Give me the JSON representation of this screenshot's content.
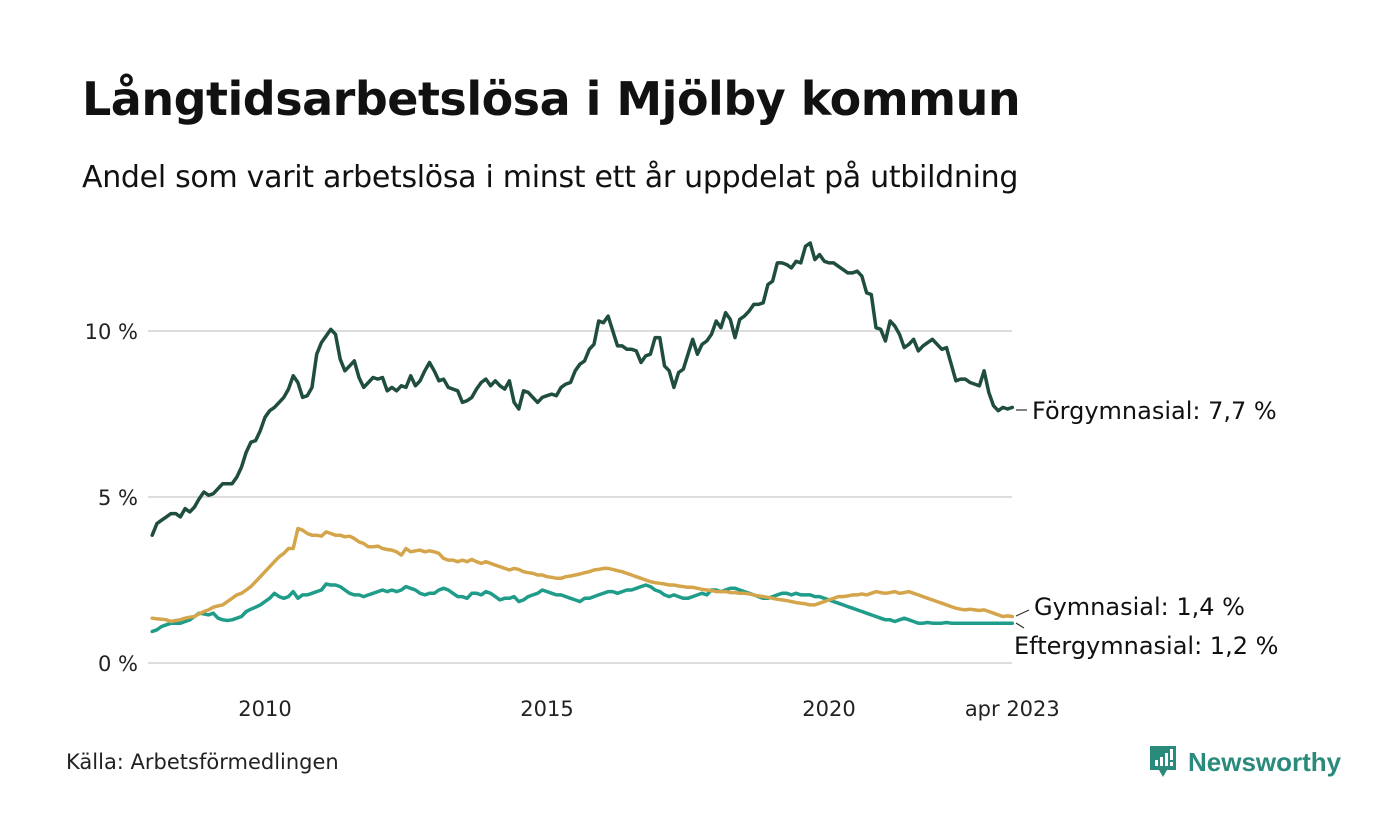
{
  "header": {
    "title": "Långtidsarbetslösa i Mjölby kommun",
    "subtitle": "Andel som varit arbetslösa i minst ett år uppdelat på utbildning"
  },
  "footer": {
    "source": "Källa: Arbetsförmedlingen",
    "brand": "Newsworthy",
    "brand_color": "#2a8a7c"
  },
  "chart_data": {
    "type": "line",
    "title": "Långtidsarbetslösa i Mjölby kommun",
    "subtitle": "Andel som varit arbetslösa i minst ett år uppdelat på utbildning",
    "xlabel": "",
    "ylabel": "",
    "x_start": "2008-01",
    "x_end": "2023-04",
    "x_frequency": "monthly",
    "xlim": [
      2008.0,
      2023.25
    ],
    "ylim": [
      0,
      13
    ],
    "grid": true,
    "y_ticks": [
      {
        "value": 0,
        "label": "0 %"
      },
      {
        "value": 5,
        "label": "5 %"
      },
      {
        "value": 10,
        "label": "10 %"
      }
    ],
    "x_ticks": [
      {
        "value": 2010.0,
        "label": "2010"
      },
      {
        "value": 2015.0,
        "label": "2015"
      },
      {
        "value": 2020.0,
        "label": "2020"
      },
      {
        "value": 2023.25,
        "label": "apr 2023"
      }
    ],
    "legend": "direct-labels-right",
    "series": [
      {
        "name": "Förgymnasial",
        "end_label": "Förgymnasial: 7,7 %",
        "color": "#1f4d3f",
        "values": [
          3.85,
          4.2,
          4.3,
          4.4,
          4.5,
          4.5,
          4.4,
          4.65,
          4.55,
          4.7,
          4.95,
          5.15,
          5.05,
          5.1,
          5.25,
          5.4,
          5.4,
          5.4,
          5.6,
          5.9,
          6.35,
          6.65,
          6.7,
          7.0,
          7.4,
          7.6,
          7.7,
          7.85,
          8.0,
          8.25,
          8.65,
          8.45,
          8.0,
          8.05,
          8.3,
          9.3,
          9.65,
          9.85,
          10.05,
          9.9,
          9.15,
          8.8,
          8.95,
          9.1,
          8.6,
          8.3,
          8.45,
          8.6,
          8.55,
          8.6,
          8.2,
          8.3,
          8.2,
          8.35,
          8.3,
          8.65,
          8.35,
          8.5,
          8.8,
          9.05,
          8.8,
          8.5,
          8.55,
          8.3,
          8.25,
          8.2,
          7.85,
          7.9,
          8.0,
          8.25,
          8.45,
          8.55,
          8.35,
          8.5,
          8.35,
          8.25,
          8.5,
          7.85,
          7.65,
          8.2,
          8.15,
          8.0,
          7.85,
          8.0,
          8.05,
          8.1,
          8.05,
          8.3,
          8.4,
          8.45,
          8.8,
          9.0,
          9.1,
          9.45,
          9.6,
          10.3,
          10.25,
          10.45,
          10.0,
          9.55,
          9.55,
          9.45,
          9.45,
          9.4,
          9.05,
          9.25,
          9.3,
          9.8,
          9.8,
          8.95,
          8.8,
          8.3,
          8.75,
          8.85,
          9.3,
          9.75,
          9.3,
          9.6,
          9.7,
          9.9,
          10.3,
          10.1,
          10.55,
          10.35,
          9.8,
          10.35,
          10.45,
          10.6,
          10.8,
          10.8,
          10.85,
          11.4,
          11.5,
          12.05,
          12.05,
          12.0,
          11.9,
          12.1,
          12.05,
          12.55,
          12.65,
          12.15,
          12.3,
          12.1,
          12.05,
          12.05,
          11.95,
          11.85,
          11.75,
          11.75,
          11.8,
          11.65,
          11.15,
          11.1,
          10.1,
          10.05,
          9.7,
          10.3,
          10.15,
          9.9,
          9.5,
          9.6,
          9.75,
          9.4,
          9.55,
          9.65,
          9.75,
          9.6,
          9.45,
          9.5,
          9.0,
          8.5,
          8.55,
          8.55,
          8.45,
          8.4,
          8.35,
          8.8,
          8.15,
          7.75,
          7.6,
          7.7,
          7.65,
          7.7
        ]
      },
      {
        "name": "Gymnasial",
        "end_label": "Gymnasial: 1,4 %",
        "color": "#d4a54b",
        "values": [
          1.35,
          1.33,
          1.32,
          1.3,
          1.25,
          1.28,
          1.3,
          1.35,
          1.38,
          1.4,
          1.48,
          1.55,
          1.6,
          1.68,
          1.72,
          1.75,
          1.85,
          1.95,
          2.05,
          2.1,
          2.2,
          2.3,
          2.45,
          2.6,
          2.75,
          2.9,
          3.05,
          3.2,
          3.3,
          3.45,
          3.45,
          4.05,
          4.0,
          3.9,
          3.85,
          3.85,
          3.82,
          3.95,
          3.9,
          3.85,
          3.85,
          3.8,
          3.82,
          3.75,
          3.65,
          3.6,
          3.5,
          3.5,
          3.52,
          3.45,
          3.42,
          3.4,
          3.35,
          3.25,
          3.45,
          3.35,
          3.38,
          3.4,
          3.35,
          3.38,
          3.35,
          3.3,
          3.15,
          3.1,
          3.1,
          3.05,
          3.1,
          3.05,
          3.12,
          3.05,
          3.0,
          3.05,
          3.0,
          2.95,
          2.9,
          2.85,
          2.8,
          2.85,
          2.82,
          2.75,
          2.72,
          2.7,
          2.65,
          2.65,
          2.6,
          2.58,
          2.55,
          2.55,
          2.6,
          2.62,
          2.65,
          2.68,
          2.72,
          2.75,
          2.8,
          2.82,
          2.85,
          2.85,
          2.82,
          2.78,
          2.75,
          2.7,
          2.65,
          2.6,
          2.55,
          2.5,
          2.45,
          2.42,
          2.4,
          2.38,
          2.35,
          2.35,
          2.32,
          2.3,
          2.28,
          2.28,
          2.25,
          2.22,
          2.2,
          2.18,
          2.15,
          2.15,
          2.15,
          2.12,
          2.12,
          2.1,
          2.1,
          2.08,
          2.05,
          2.02,
          2.0,
          1.98,
          1.95,
          1.92,
          1.9,
          1.88,
          1.85,
          1.82,
          1.8,
          1.78,
          1.75,
          1.75,
          1.8,
          1.85,
          1.9,
          1.95,
          2.0,
          2.0,
          2.02,
          2.05,
          2.05,
          2.08,
          2.05,
          2.1,
          2.15,
          2.12,
          2.1,
          2.12,
          2.15,
          2.1,
          2.12,
          2.15,
          2.1,
          2.05,
          2.0,
          1.95,
          1.9,
          1.85,
          1.8,
          1.75,
          1.7,
          1.65,
          1.62,
          1.6,
          1.62,
          1.6,
          1.58,
          1.6,
          1.55,
          1.5,
          1.45,
          1.4,
          1.42,
          1.4
        ]
      },
      {
        "name": "Eftergymnasial",
        "end_label": "Eftergymnasial: 1,2 %",
        "color": "#1f9c8a",
        "values": [
          0.95,
          1.0,
          1.1,
          1.15,
          1.2,
          1.2,
          1.2,
          1.25,
          1.3,
          1.4,
          1.5,
          1.48,
          1.45,
          1.5,
          1.35,
          1.3,
          1.28,
          1.3,
          1.35,
          1.4,
          1.55,
          1.62,
          1.68,
          1.75,
          1.85,
          1.95,
          2.1,
          2.0,
          1.95,
          2.0,
          2.15,
          1.95,
          2.05,
          2.05,
          2.1,
          2.15,
          2.2,
          2.38,
          2.35,
          2.35,
          2.3,
          2.2,
          2.1,
          2.05,
          2.05,
          2.0,
          2.05,
          2.1,
          2.15,
          2.2,
          2.15,
          2.2,
          2.15,
          2.2,
          2.3,
          2.25,
          2.2,
          2.1,
          2.05,
          2.1,
          2.1,
          2.2,
          2.25,
          2.2,
          2.1,
          2.0,
          2.0,
          1.95,
          2.1,
          2.1,
          2.05,
          2.15,
          2.1,
          2.0,
          1.9,
          1.95,
          1.95,
          2.0,
          1.85,
          1.9,
          2.0,
          2.05,
          2.1,
          2.2,
          2.15,
          2.1,
          2.05,
          2.05,
          2.0,
          1.95,
          1.9,
          1.85,
          1.95,
          1.95,
          2.0,
          2.05,
          2.1,
          2.15,
          2.15,
          2.1,
          2.15,
          2.2,
          2.2,
          2.25,
          2.3,
          2.35,
          2.3,
          2.2,
          2.15,
          2.05,
          2.0,
          2.05,
          2.0,
          1.95,
          1.95,
          2.0,
          2.05,
          2.1,
          2.05,
          2.2,
          2.2,
          2.15,
          2.2,
          2.25,
          2.25,
          2.2,
          2.15,
          2.1,
          2.05,
          2.0,
          1.95,
          1.95,
          2.0,
          2.05,
          2.1,
          2.1,
          2.05,
          2.1,
          2.05,
          2.05,
          2.05,
          2.0,
          2.0,
          1.95,
          1.9,
          1.85,
          1.8,
          1.75,
          1.7,
          1.65,
          1.6,
          1.55,
          1.5,
          1.45,
          1.4,
          1.35,
          1.3,
          1.3,
          1.25,
          1.3,
          1.35,
          1.3,
          1.25,
          1.2,
          1.2,
          1.22,
          1.2,
          1.2,
          1.2,
          1.22,
          1.2,
          1.2,
          1.2,
          1.2,
          1.2,
          1.2,
          1.2,
          1.2,
          1.2,
          1.2,
          1.2,
          1.2,
          1.2,
          1.2
        ]
      }
    ]
  }
}
